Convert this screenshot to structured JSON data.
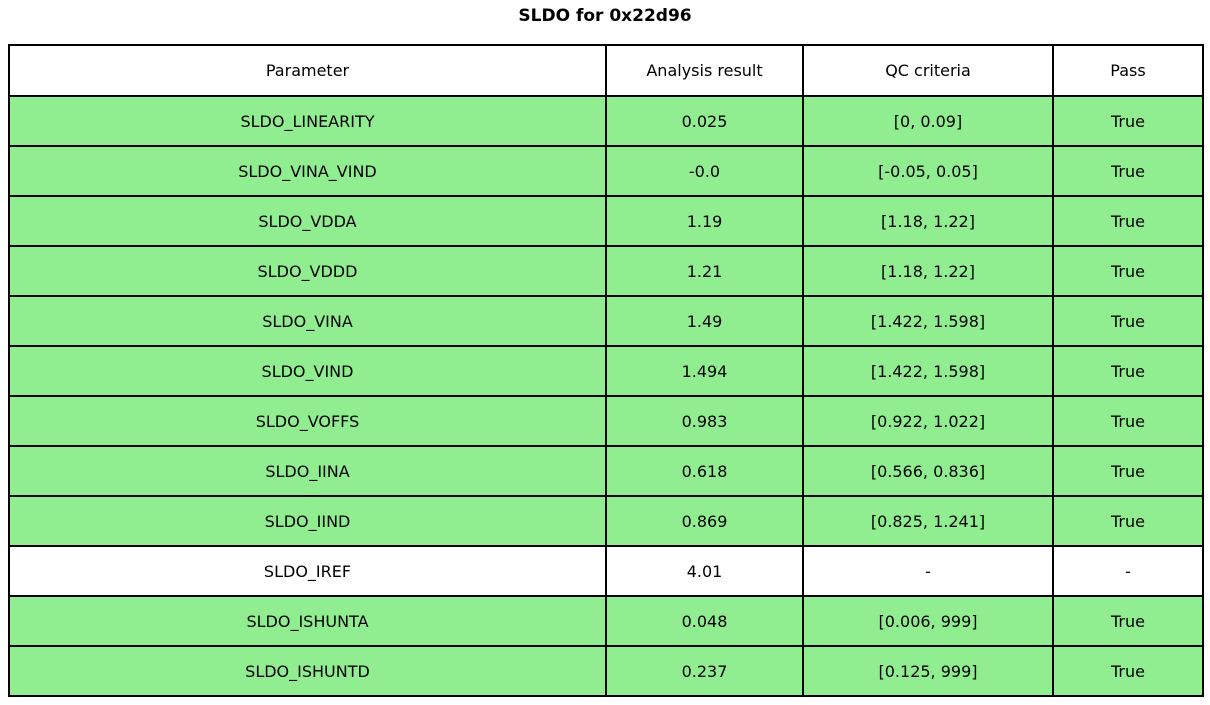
{
  "title": "SLDO for 0x22d96",
  "colors": {
    "pass_row": "#90EE90",
    "neutral_row": "#ffffff",
    "border": "#000000",
    "text": "#000000",
    "background": "#ffffff"
  },
  "table": {
    "columns": [
      "Parameter",
      "Analysis result",
      "QC criteria",
      "Pass"
    ],
    "rows": [
      {
        "parameter": "SLDO_LINEARITY",
        "result": "0.025",
        "criteria": "[0, 0.09]",
        "pass": "True",
        "highlight": true
      },
      {
        "parameter": "SLDO_VINA_VIND",
        "result": "-0.0",
        "criteria": "[-0.05, 0.05]",
        "pass": "True",
        "highlight": true
      },
      {
        "parameter": "SLDO_VDDA",
        "result": "1.19",
        "criteria": "[1.18, 1.22]",
        "pass": "True",
        "highlight": true
      },
      {
        "parameter": "SLDO_VDDD",
        "result": "1.21",
        "criteria": "[1.18, 1.22]",
        "pass": "True",
        "highlight": true
      },
      {
        "parameter": "SLDO_VINA",
        "result": "1.49",
        "criteria": "[1.422, 1.598]",
        "pass": "True",
        "highlight": true
      },
      {
        "parameter": "SLDO_VIND",
        "result": "1.494",
        "criteria": "[1.422, 1.598]",
        "pass": "True",
        "highlight": true
      },
      {
        "parameter": "SLDO_VOFFS",
        "result": "0.983",
        "criteria": "[0.922, 1.022]",
        "pass": "True",
        "highlight": true
      },
      {
        "parameter": "SLDO_IINA",
        "result": "0.618",
        "criteria": "[0.566, 0.836]",
        "pass": "True",
        "highlight": true
      },
      {
        "parameter": "SLDO_IIND",
        "result": "0.869",
        "criteria": "[0.825, 1.241]",
        "pass": "True",
        "highlight": true
      },
      {
        "parameter": "SLDO_IREF",
        "result": "4.01",
        "criteria": "-",
        "pass": "-",
        "highlight": false
      },
      {
        "parameter": "SLDO_ISHUNTA",
        "result": "0.048",
        "criteria": "[0.006, 999]",
        "pass": "True",
        "highlight": true
      },
      {
        "parameter": "SLDO_ISHUNTD",
        "result": "0.237",
        "criteria": "[0.125, 999]",
        "pass": "True",
        "highlight": true
      }
    ]
  },
  "chart_data": {
    "type": "table",
    "title": "SLDO for 0x22d96",
    "columns": [
      "Parameter",
      "Analysis result",
      "QC criteria",
      "Pass"
    ],
    "rows": [
      [
        "SLDO_LINEARITY",
        "0.025",
        "[0, 0.09]",
        "True"
      ],
      [
        "SLDO_VINA_VIND",
        "-0.0",
        "[-0.05, 0.05]",
        "True"
      ],
      [
        "SLDO_VDDA",
        "1.19",
        "[1.18, 1.22]",
        "True"
      ],
      [
        "SLDO_VDDD",
        "1.21",
        "[1.18, 1.22]",
        "True"
      ],
      [
        "SLDO_VINA",
        "1.49",
        "[1.422, 1.598]",
        "True"
      ],
      [
        "SLDO_VIND",
        "1.494",
        "[1.422, 1.598]",
        "True"
      ],
      [
        "SLDO_VOFFS",
        "0.983",
        "[0.922, 1.022]",
        "True"
      ],
      [
        "SLDO_IINA",
        "0.618",
        "[0.566, 0.836]",
        "True"
      ],
      [
        "SLDO_IIND",
        "0.869",
        "[0.825, 1.241]",
        "True"
      ],
      [
        "SLDO_IREF",
        "4.01",
        "-",
        "-"
      ],
      [
        "SLDO_ISHUNTA",
        "0.048",
        "[0.006, 999]",
        "True"
      ],
      [
        "SLDO_ISHUNTD",
        "0.237",
        "[0.125, 999]",
        "True"
      ]
    ],
    "row_highlight": [
      true,
      true,
      true,
      true,
      true,
      true,
      true,
      true,
      true,
      false,
      true,
      true
    ],
    "highlight_color": "#90EE90",
    "layout": "header row white; passing rows light green; IREF row white with dash criteria/pass"
  }
}
